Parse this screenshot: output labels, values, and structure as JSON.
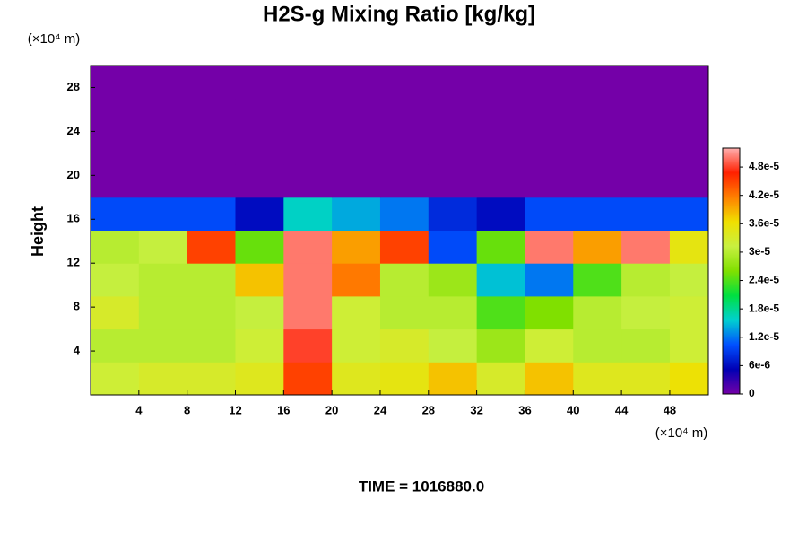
{
  "chart_data": {
    "type": "heatmap",
    "title": "H2S-g Mixing Ratio [kg/kg]",
    "y_unit": "(×10⁴ m)",
    "x_unit": "(×10⁴ m)",
    "ylabel": "Height",
    "footer": "TIME = 1016880.0",
    "xlim": [
      0,
      51.2
    ],
    "ylim": [
      0,
      30
    ],
    "xticks": [
      4,
      8,
      12,
      16,
      20,
      24,
      28,
      32,
      36,
      40,
      44,
      48
    ],
    "yticks": [
      4,
      8,
      12,
      16,
      20,
      24,
      28
    ],
    "xbins": [
      0,
      4,
      8,
      12,
      16,
      20,
      24,
      28,
      32,
      36,
      40,
      44,
      48,
      51.2
    ],
    "ybins": [
      0,
      3,
      6,
      9,
      12,
      15,
      18,
      21,
      24,
      27,
      30
    ],
    "z": [
      [
        3.2e-05,
        3.3e-05,
        3.3e-05,
        3.4e-05,
        4.5e-05,
        3.4e-05,
        3.5e-05,
        3.8e-05,
        3.3e-05,
        3.8e-05,
        3.4e-05,
        3.4e-05,
        3.6e-05
      ],
      [
        3e-05,
        3e-05,
        3e-05,
        3.2e-05,
        4.8e-05,
        3.2e-05,
        3.3e-05,
        3.1e-05,
        2.8e-05,
        3.2e-05,
        3e-05,
        3e-05,
        3.2e-05
      ],
      [
        3.3e-05,
        3e-05,
        3e-05,
        3.1e-05,
        5e-05,
        3.2e-05,
        3e-05,
        3e-05,
        2.4e-05,
        2.6e-05,
        3e-05,
        3.1e-05,
        3.2e-05
      ],
      [
        3.1e-05,
        3e-05,
        3e-05,
        3.8e-05,
        5e-05,
        4.2e-05,
        3e-05,
        2.8e-05,
        1.5e-05,
        1.2e-05,
        2.4e-05,
        3e-05,
        3.1e-05
      ],
      [
        3e-05,
        3.1e-05,
        4.5e-05,
        2.5e-05,
        5e-05,
        4e-05,
        4.5e-05,
        1e-05,
        2.5e-05,
        5e-05,
        4e-05,
        5e-05,
        3.5e-05
      ],
      [
        1e-05,
        1e-05,
        1e-05,
        6e-06,
        1.6e-05,
        1.4e-05,
        1.2e-05,
        8e-06,
        6e-06,
        1e-05,
        1e-05,
        1e-05,
        1e-05
      ],
      [
        0,
        0,
        0,
        0,
        0,
        0,
        0,
        0,
        0,
        0,
        0,
        0,
        0
      ],
      [
        0,
        0,
        0,
        0,
        0,
        0,
        0,
        0,
        0,
        0,
        0,
        0,
        0
      ],
      [
        0,
        0,
        0,
        0,
        0,
        0,
        0,
        0,
        0,
        0,
        0,
        0,
        0
      ],
      [
        0,
        0,
        0,
        0,
        0,
        0,
        0,
        0,
        0,
        0,
        0,
        0,
        0
      ]
    ],
    "clim": [
      0,
      5.2e-05
    ],
    "cticks": [
      0,
      {
        "value": 6e-06,
        "label": "6e-6"
      },
      {
        "value": 1.2e-05,
        "label": "1.2e-5"
      },
      {
        "value": 1.8e-05,
        "label": "1.8e-5"
      },
      {
        "value": 2.4e-05,
        "label": "2.4e-5"
      },
      {
        "value": 3e-05,
        "label": "3e-5"
      },
      {
        "value": 3.6e-05,
        "label": "3.6e-5"
      },
      {
        "value": 4.2e-05,
        "label": "4.2e-5"
      },
      {
        "value": 4.8e-05,
        "label": "4.8e-5"
      }
    ],
    "colormap": [
      "#7400a8",
      "#0000b4",
      "#0050ff",
      "#00d0d0",
      "#00e040",
      "#80e000",
      "#c8f040",
      "#f0e000",
      "#ff8000",
      "#ff2000",
      "#ffb0b0"
    ]
  }
}
